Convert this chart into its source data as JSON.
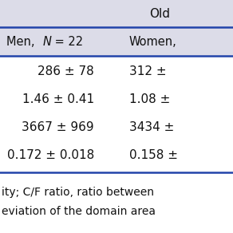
{
  "header_group": "Old",
  "col1_header_parts": [
    "Men, ",
    "N",
    " = 22"
  ],
  "col2_header": "Women,",
  "rows": [
    [
      "286 ± 78",
      "312 ±"
    ],
    [
      "1.46 ± 0.41",
      "1.08 ±"
    ],
    [
      "3667 ± 969",
      "3434 ±"
    ],
    [
      "0.172 ± 0.018",
      "0.158 ±"
    ]
  ],
  "footer_lines": [
    "ity; C/F ratio, ratio between",
    "eviation of the domain area"
  ],
  "bg_color": "#e8e8f0",
  "data_bg_color": "#ffffff",
  "footer_bg_color": "#ffffff",
  "divider_color": "#333399",
  "text_color": "#111111"
}
